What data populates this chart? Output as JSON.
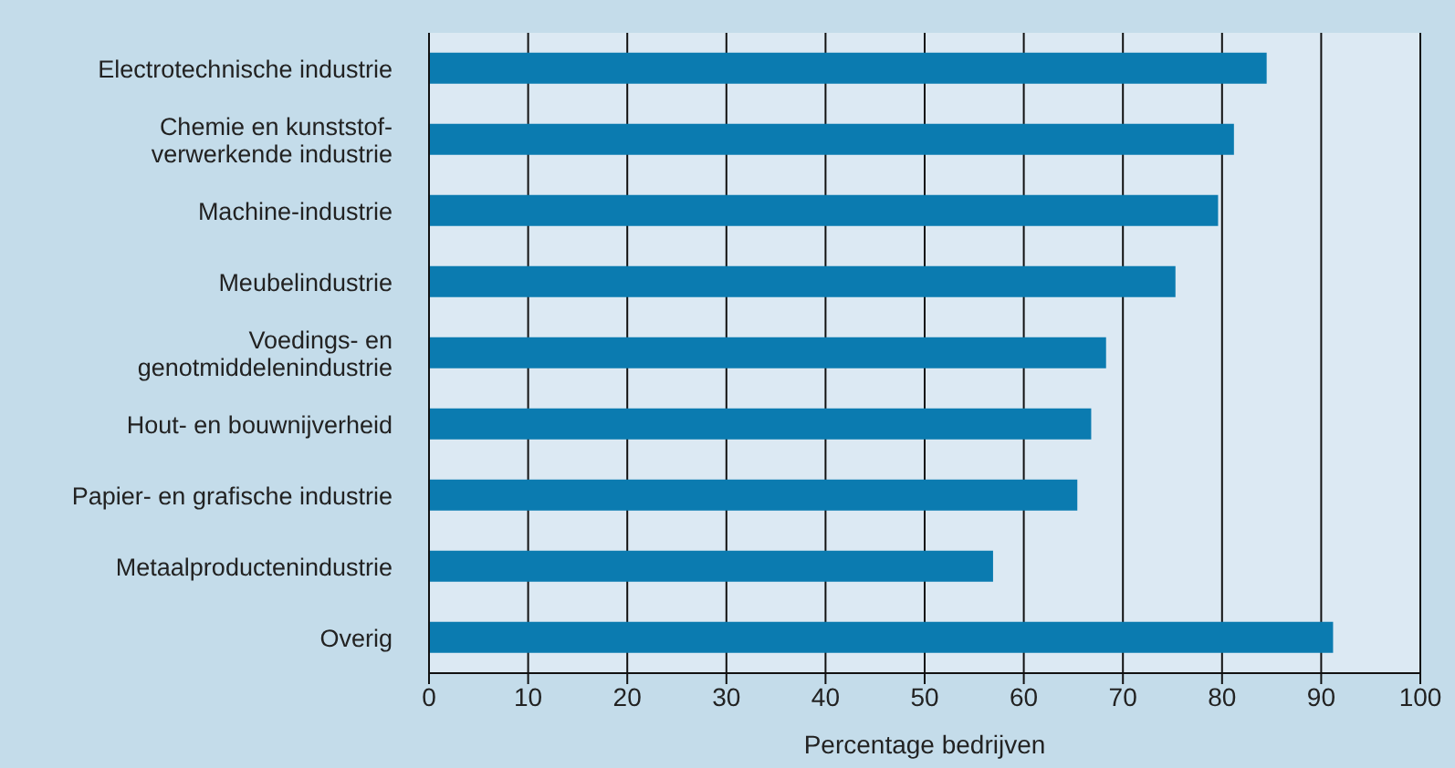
{
  "chart_data": {
    "type": "bar",
    "orientation": "horizontal",
    "xlabel": "Percentage bedrijven",
    "categories": [
      "Electrotechnische industrie",
      "Chemie en kunststof-\nverwerkende industrie",
      "Machine-industrie",
      "Meubelindustrie",
      "Voedings- en\ngenotmiddelenindustrie",
      "Hout- en bouwnijverheid",
      "Papier- en grafische industrie",
      "Metaalproductenindustrie",
      "Overig"
    ],
    "values": [
      84.5,
      81.2,
      79.6,
      75.3,
      68.3,
      66.8,
      65.4,
      56.9,
      91.2
    ],
    "color": "#0b7bb0",
    "xlim": [
      0,
      100
    ],
    "xticks": [
      0,
      10,
      20,
      30,
      40,
      50,
      60,
      70,
      80,
      90,
      100
    ],
    "grid": "x"
  }
}
